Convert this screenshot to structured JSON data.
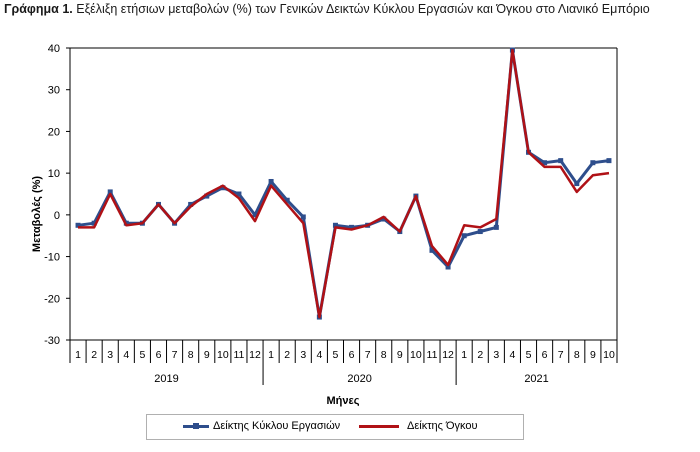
{
  "title": {
    "prefix": "Γράφημα 1.",
    "text": "Εξέλιξη ετήσιων μεταβολών (%) των Γενικών Δεικτών Κύκλου Εργασιών και Όγκου στο Λιανικό Εμπόριο"
  },
  "colors": {
    "turnover": "#2e4e8c",
    "volume": "#b01116",
    "grid": "#000000"
  },
  "chart_data": {
    "type": "line",
    "title": "Εξέλιξη ετήσιων μεταβολών (%) των Γενικών Δεικτών Κύκλου Εργασιών και Όγκου στο Λιανικό Εμπόριο",
    "xlabel": "Μήνες",
    "ylabel": "Μεταβολές (%)",
    "ylim": [
      -30,
      40
    ],
    "yticks": [
      -30,
      -20,
      -10,
      0,
      10,
      20,
      30,
      40
    ],
    "grid": false,
    "legend_position": "bottom",
    "years": [
      {
        "label": "2019",
        "count": 12
      },
      {
        "label": "2020",
        "count": 12
      },
      {
        "label": "2021",
        "count": 10
      }
    ],
    "categories": [
      "1",
      "2",
      "3",
      "4",
      "5",
      "6",
      "7",
      "8",
      "9",
      "10",
      "11",
      "12",
      "1",
      "2",
      "3",
      "4",
      "5",
      "6",
      "7",
      "8",
      "9",
      "10",
      "11",
      "12",
      "1",
      "2",
      "3",
      "4",
      "5",
      "6",
      "7",
      "8",
      "9",
      "10"
    ],
    "series": [
      {
        "name": "Δείκτης Κύκλου Εργασιών",
        "marker": "square",
        "values": [
          -2.5,
          -2,
          5.5,
          -2,
          -2,
          2.5,
          -2,
          2.5,
          4.5,
          6.5,
          5,
          0,
          8,
          3.5,
          -0.5,
          -24.5,
          -2.5,
          -3,
          -2.5,
          -1,
          -4,
          4.5,
          -8.5,
          -12.5,
          -5,
          -4,
          -3,
          39.5,
          15,
          12.5,
          13,
          7.5,
          12.5,
          13
        ]
      },
      {
        "name": "Δείκτης Όγκου",
        "marker": "none",
        "values": [
          -3,
          -3,
          5,
          -2.5,
          -2,
          2.5,
          -2,
          2,
          5,
          7,
          4,
          -1.5,
          7,
          2.5,
          -2,
          -24.5,
          -3,
          -3.5,
          -2.5,
          -0.5,
          -4,
          4.5,
          -7.5,
          -12,
          -2.5,
          -3,
          -1,
          39.5,
          15,
          11.5,
          11.5,
          5.5,
          9.5,
          10
        ]
      }
    ]
  }
}
